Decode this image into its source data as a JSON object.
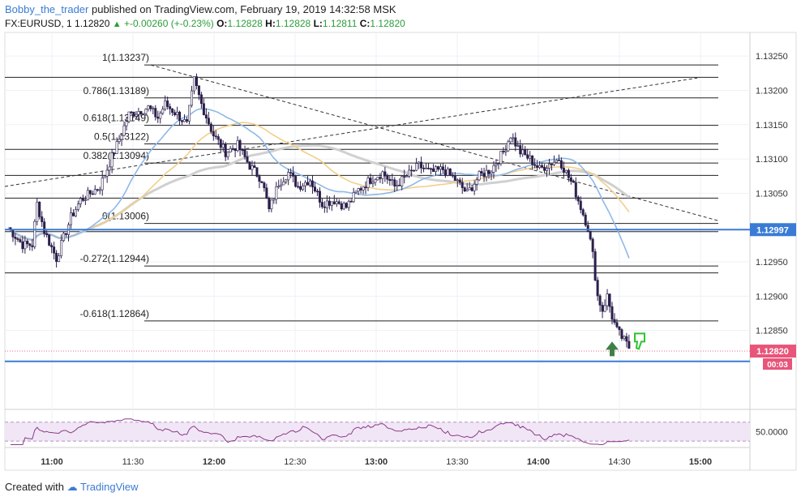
{
  "header": {
    "username": "Bobby_the_trader",
    "published_text": "published on TradingView.com, February 19, 2019 14:32:58 MSK",
    "symbol": "FX:EURUSD, 1",
    "last": "1.12820",
    "change": "+-0.00260 (+-0.23%)",
    "o_label": "O:",
    "o_val": "1.12828",
    "h_label": "H:",
    "h_val": "1.12828",
    "l_label": "L:",
    "l_val": "1.12811",
    "c_label": "C:",
    "c_val": "1.12820"
  },
  "footer": {
    "created_with": "Created with",
    "brand": "TradingView"
  },
  "colors": {
    "up_candle": "#ffffff",
    "down_candle": "#2b1f4a",
    "ma_blue": "#8fb8e8",
    "ma_orange": "#f2cf8a",
    "ma_gray": "#d0d0d0",
    "level_blue": "#3a7bd5",
    "price_tag": "#e8547a",
    "rsi_line": "#8a3a8a",
    "rsi_band": "#f1e6f5"
  },
  "chart_data": {
    "type": "candlestick",
    "symbol": "EURUSD",
    "timeframe": "1",
    "x_ticks": [
      "11:00",
      "11:30",
      "12:00",
      "12:30",
      "13:00",
      "13:30",
      "14:00",
      "14:30",
      "15:00"
    ],
    "y_ticks": [
      "1.13250",
      "1.13200",
      "1.13150",
      "1.13100",
      "1.13050",
      "1.12950",
      "1.12900",
      "1.12850"
    ],
    "y_range": [
      1.12735,
      1.13275
    ],
    "fib_levels": [
      {
        "label": "1(1.13237)",
        "price": 1.13237
      },
      {
        "label": "0.786(1.13189)",
        "display": "0.786(1.131",
        "price": 1.13189
      },
      {
        "label": "0.618(1.13149)",
        "display": "0.618(1.131 49)",
        "price": 1.13149
      },
      {
        "label": "0.5(1.13122)",
        "display": "0.5(1.1 3122)",
        "price": 1.13122
      },
      {
        "label": "0.382(1.13094)",
        "display": "0.382(1.13094)",
        "price": 1.13094
      },
      {
        "label": "0(1.13006)",
        "display": "0(1.13006)",
        "price": 1.13006
      },
      {
        "label": "-0.272(1.12944)",
        "display": "-0.272(1.12944)",
        "price": 1.12944
      },
      {
        "label": "-0.618(1.12864)",
        "display": "-0.618(1.12864)",
        "price": 1.12864
      }
    ],
    "extra_lines": [
      1.13219,
      1.13114,
      1.13076,
      1.13043,
      1.12994,
      1.12934
    ],
    "support_level": {
      "label": "1.12997",
      "price": 1.12997
    },
    "current_price": {
      "label": "1.12820",
      "price": 1.1282
    },
    "countdown": "00:03",
    "blue_level_2": 1.12805,
    "rsi": {
      "tick": "50.0000",
      "upper": 70,
      "lower": 30
    },
    "candles_anchor": [
      [
        0,
        1.13
      ],
      [
        6,
        1.12975
      ],
      [
        10,
        1.12975
      ],
      [
        12,
        1.13035
      ],
      [
        15,
        1.12995
      ],
      [
        20,
        1.12955
      ],
      [
        26,
        1.13015
      ],
      [
        30,
        1.1304
      ],
      [
        38,
        1.1306
      ],
      [
        45,
        1.1312
      ],
      [
        50,
        1.13165
      ],
      [
        54,
        1.1317
      ],
      [
        58,
        1.13175
      ],
      [
        62,
        1.1316
      ],
      [
        65,
        1.1318
      ],
      [
        70,
        1.13165
      ],
      [
        74,
        1.1315
      ],
      [
        77,
        1.13215
      ],
      [
        80,
        1.1318
      ],
      [
        85,
        1.13135
      ],
      [
        90,
        1.1311
      ],
      [
        95,
        1.1312
      ],
      [
        100,
        1.1309
      ],
      [
        105,
        1.1307
      ],
      [
        108,
        1.13025
      ],
      [
        112,
        1.13065
      ],
      [
        116,
        1.1308
      ],
      [
        120,
        1.1306
      ],
      [
        125,
        1.1307
      ],
      [
        130,
        1.13035
      ],
      [
        135,
        1.1304
      ],
      [
        140,
        1.1303
      ],
      [
        145,
        1.13055
      ],
      [
        150,
        1.1307
      ],
      [
        155,
        1.1308
      ],
      [
        160,
        1.1306
      ],
      [
        165,
        1.13075
      ],
      [
        170,
        1.1309
      ],
      [
        175,
        1.1308
      ],
      [
        180,
        1.13085
      ],
      [
        185,
        1.1307
      ],
      [
        190,
        1.1305
      ],
      [
        195,
        1.13075
      ],
      [
        200,
        1.13085
      ],
      [
        205,
        1.1311
      ],
      [
        208,
        1.13135
      ],
      [
        212,
        1.1311
      ],
      [
        216,
        1.131
      ],
      [
        220,
        1.13085
      ],
      [
        225,
        1.13095
      ],
      [
        228,
        1.131
      ],
      [
        231,
        1.1308
      ],
      [
        234,
        1.1306
      ],
      [
        237,
        1.1303
      ],
      [
        240,
        1.13
      ],
      [
        242,
        1.1296
      ],
      [
        244,
        1.129
      ],
      [
        246,
        1.1288
      ],
      [
        248,
        1.129
      ],
      [
        250,
        1.1287
      ],
      [
        252,
        1.1285
      ],
      [
        255,
        1.12835
      ],
      [
        257,
        1.12825
      ]
    ]
  }
}
